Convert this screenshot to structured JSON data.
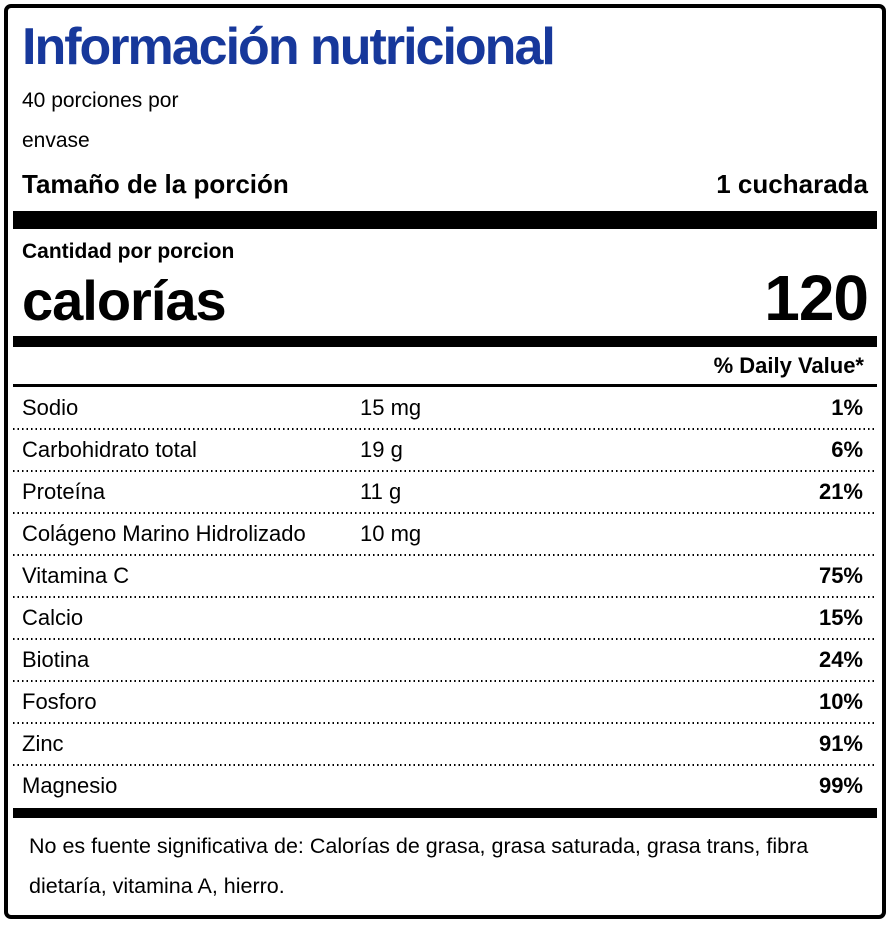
{
  "label": {
    "title": "Información nutricional",
    "servings_line1": "40 porciones por",
    "servings_line2": "envase",
    "serving_size_label": "Tamaño de la porción",
    "serving_size_value": "1 cucharada",
    "amount_per_label": "Cantidad por porcion",
    "calories_label": "calorías",
    "calories_value": "120",
    "daily_value_header": "% Daily Value*",
    "footnote": "No es fuente significativa de: Calorías de grasa, grasa saturada, grasa trans, fibra dietaría, vitamina A, hierro."
  },
  "table": {
    "rows": [
      {
        "name": "Sodio",
        "amount": "15 mg",
        "dv": "1%"
      },
      {
        "name": "Carbohidrato total",
        "amount": "19 g",
        "dv": "6%"
      },
      {
        "name": "Proteína",
        "amount": "11 g",
        "dv": "21%"
      },
      {
        "name": "Colágeno Marino Hidrolizado",
        "amount": "10 mg",
        "dv": ""
      },
      {
        "name": "Vitamina C",
        "amount": "",
        "dv": "75%"
      },
      {
        "name": "Calcio",
        "amount": "",
        "dv": "15%"
      },
      {
        "name": "Biotina",
        "amount": "",
        "dv": "24%"
      },
      {
        "name": "Fosforo",
        "amount": "",
        "dv": "10%"
      },
      {
        "name": "Zinc",
        "amount": "",
        "dv": "91%"
      },
      {
        "name": "Magnesio",
        "amount": "",
        "dv": "99%"
      }
    ]
  },
  "colors": {
    "title_blue": "#17389B",
    "text": "#000000",
    "background": "#FFFFFF",
    "rule_black": "#000000"
  }
}
